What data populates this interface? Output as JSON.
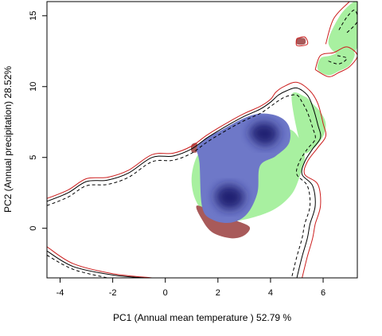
{
  "chart_data": {
    "type": "scatter",
    "title": "",
    "xlabel": "PC1 (Annual mean temperature ) 52.79 %",
    "ylabel": "PC2 (Annual precipitation) 28.52%",
    "xlim": [
      -4.5,
      7.3
    ],
    "ylim": [
      -3.5,
      16
    ],
    "x_ticks": [
      -4,
      -2,
      0,
      2,
      4,
      6
    ],
    "y_ticks": [
      0,
      5,
      10,
      15
    ],
    "grid": false,
    "legend": "none",
    "colors": {
      "green": "#a8f0a0",
      "brown": "#a85a5a",
      "navy": "#1a1f6e",
      "blue_edge": "#6e78c8",
      "red_line": "#cc1e1e",
      "black_line": "#000000"
    },
    "series": [
      {
        "kind": "density-region",
        "color": "#a8f0a0",
        "points": [
          [
            1.1,
            4.6
          ],
          [
            1.4,
            5.6
          ],
          [
            2.0,
            6.6
          ],
          [
            2.8,
            7.2
          ],
          [
            3.8,
            7.3
          ],
          [
            4.5,
            7.1
          ],
          [
            4.9,
            6.8
          ],
          [
            5.2,
            5.9
          ],
          [
            5.3,
            4.9
          ],
          [
            5.1,
            3.6
          ],
          [
            4.8,
            2.4
          ],
          [
            4.2,
            1.4
          ],
          [
            3.4,
            0.8
          ],
          [
            2.5,
            0.5
          ],
          [
            1.7,
            0.8
          ],
          [
            1.2,
            1.8
          ],
          [
            1.0,
            3.2
          ]
        ]
      },
      {
        "kind": "density-region",
        "color": "#a8f0a0",
        "points": [
          [
            4.8,
            9.3
          ],
          [
            5.3,
            9.3
          ],
          [
            5.6,
            8.8
          ],
          [
            5.9,
            8.2
          ],
          [
            6.1,
            7.4
          ],
          [
            6.0,
            6.5
          ],
          [
            5.6,
            5.6
          ],
          [
            5.2,
            5.6
          ]
        ]
      },
      {
        "kind": "density-region",
        "color": "#a8f0a0",
        "points": [
          [
            6.2,
            13.1
          ],
          [
            6.6,
            14.9
          ],
          [
            7.1,
            15.9
          ],
          [
            7.3,
            15.8
          ],
          [
            7.3,
            12.8
          ],
          [
            6.7,
            12.2
          ]
        ]
      },
      {
        "kind": "density-region",
        "color": "#a8f0a0",
        "points": [
          [
            5.9,
            12.0
          ],
          [
            6.3,
            12.2
          ],
          [
            6.9,
            12.6
          ],
          [
            7.2,
            12.3
          ],
          [
            7.0,
            11.5
          ],
          [
            6.6,
            11.1
          ],
          [
            6.2,
            10.8
          ],
          [
            5.8,
            11.2
          ]
        ]
      },
      {
        "kind": "density-region",
        "color": "#a85a5a",
        "points": [
          [
            1.2,
            1.6
          ],
          [
            1.4,
            0.6
          ],
          [
            1.8,
            -0.3
          ],
          [
            2.5,
            -0.7
          ],
          [
            3.0,
            -0.5
          ],
          [
            3.2,
            0.1
          ],
          [
            2.6,
            0.6
          ],
          [
            2.0,
            1.0
          ]
        ]
      },
      {
        "kind": "density-region",
        "color": "#a85a5a",
        "points": [
          [
            1.0,
            5.9
          ],
          [
            1.2,
            6.0
          ],
          [
            1.2,
            5.4
          ],
          [
            1.0,
            5.4
          ]
        ]
      },
      {
        "kind": "density-region",
        "color": "#a85a5a",
        "points": [
          [
            5.0,
            13.4
          ],
          [
            5.3,
            13.4
          ],
          [
            5.3,
            13.0
          ],
          [
            5.0,
            13.0
          ]
        ]
      },
      {
        "kind": "density-region",
        "color": "#6e78c8",
        "points": [
          [
            1.3,
            4.6
          ],
          [
            1.2,
            5.7
          ],
          [
            1.6,
            6.4
          ],
          [
            2.2,
            7.0
          ],
          [
            2.9,
            7.7
          ],
          [
            3.6,
            8.1
          ],
          [
            4.3,
            7.9
          ],
          [
            4.7,
            7.2
          ],
          [
            4.7,
            6.0
          ],
          [
            4.2,
            5.1
          ],
          [
            3.6,
            4.4
          ],
          [
            3.5,
            2.5
          ],
          [
            3.1,
            1.0
          ],
          [
            2.5,
            0.4
          ],
          [
            1.8,
            0.6
          ],
          [
            1.4,
            1.5
          ]
        ]
      },
      {
        "kind": "density-core",
        "color": "#1a1f6e",
        "points": [
          [
            3.2,
            6.7
          ],
          [
            3.5,
            7.4
          ],
          [
            4.0,
            7.4
          ],
          [
            4.3,
            6.8
          ],
          [
            4.1,
            6.0
          ],
          [
            3.6,
            5.9
          ]
        ]
      },
      {
        "kind": "density-core",
        "color": "#1a1f6e",
        "points": [
          [
            1.9,
            2.2
          ],
          [
            2.1,
            2.9
          ],
          [
            2.6,
            3.0
          ],
          [
            3.0,
            2.4
          ],
          [
            2.8,
            1.5
          ],
          [
            2.2,
            1.4
          ]
        ]
      },
      {
        "kind": "contour",
        "color": "#cc1e1e",
        "style": "solid",
        "points": [
          [
            -4.5,
            2.1
          ],
          [
            -3.7,
            2.7
          ],
          [
            -3.0,
            3.5
          ],
          [
            -2.2,
            3.6
          ],
          [
            -1.4,
            4.1
          ],
          [
            -0.5,
            5.2
          ],
          [
            0.3,
            5.3
          ],
          [
            1.0,
            5.8
          ],
          [
            1.6,
            6.6
          ],
          [
            2.4,
            7.5
          ],
          [
            3.0,
            8.1
          ],
          [
            3.6,
            8.6
          ],
          [
            4.0,
            9.1
          ],
          [
            4.2,
            9.6
          ],
          [
            4.5,
            10.0
          ],
          [
            5.0,
            10.3
          ],
          [
            5.5,
            9.7
          ],
          [
            5.8,
            8.8
          ],
          [
            6.0,
            7.4
          ],
          [
            6.1,
            6.5
          ],
          [
            5.8,
            5.7
          ],
          [
            5.4,
            4.7
          ],
          [
            5.3,
            3.8
          ],
          [
            5.8,
            3.1
          ],
          [
            5.9,
            1.6
          ],
          [
            5.7,
            0.3
          ],
          [
            5.6,
            -0.7
          ],
          [
            5.4,
            -2.0
          ],
          [
            5.2,
            -3.5
          ]
        ]
      },
      {
        "kind": "contour",
        "color": "#cc1e1e",
        "style": "solid",
        "points": [
          [
            -4.5,
            -1.3
          ],
          [
            -3.5,
            -2.5
          ],
          [
            -2.0,
            -3.2
          ],
          [
            -0.5,
            -3.5
          ]
        ]
      },
      {
        "kind": "contour",
        "color": "#000000",
        "style": "solid",
        "points": [
          [
            -4.5,
            1.9
          ],
          [
            -3.7,
            2.5
          ],
          [
            -3.0,
            3.3
          ],
          [
            -2.2,
            3.4
          ],
          [
            -1.4,
            3.9
          ],
          [
            -0.5,
            5.0
          ],
          [
            0.3,
            5.1
          ],
          [
            1.0,
            5.6
          ],
          [
            1.6,
            6.4
          ],
          [
            2.4,
            7.3
          ],
          [
            3.0,
            7.9
          ],
          [
            3.6,
            8.4
          ],
          [
            4.0,
            8.9
          ],
          [
            4.3,
            9.4
          ],
          [
            4.6,
            9.7
          ],
          [
            5.0,
            9.9
          ],
          [
            5.4,
            9.4
          ],
          [
            5.6,
            8.6
          ],
          [
            5.8,
            7.3
          ],
          [
            5.9,
            6.4
          ],
          [
            5.6,
            5.6
          ],
          [
            5.3,
            4.7
          ],
          [
            5.2,
            3.8
          ],
          [
            5.6,
            3.0
          ],
          [
            5.7,
            1.6
          ],
          [
            5.5,
            0.3
          ],
          [
            5.4,
            -0.7
          ],
          [
            5.2,
            -2.0
          ],
          [
            5.0,
            -3.5
          ]
        ]
      },
      {
        "kind": "contour",
        "color": "#000000",
        "style": "solid",
        "points": [
          [
            -4.5,
            -1.6
          ],
          [
            -3.5,
            -2.7
          ],
          [
            -2.0,
            -3.3
          ],
          [
            -0.8,
            -3.5
          ]
        ]
      },
      {
        "kind": "contour",
        "color": "#000000",
        "style": "dashed",
        "points": [
          [
            -4.5,
            1.6
          ],
          [
            -3.7,
            2.2
          ],
          [
            -3.0,
            3.0
          ],
          [
            -2.2,
            3.1
          ],
          [
            -1.4,
            3.6
          ],
          [
            -0.5,
            4.7
          ],
          [
            0.3,
            4.8
          ],
          [
            1.0,
            5.3
          ],
          [
            1.6,
            6.1
          ],
          [
            2.4,
            7.0
          ],
          [
            3.0,
            7.6
          ],
          [
            3.6,
            8.1
          ],
          [
            4.0,
            8.6
          ],
          [
            4.3,
            9.0
          ],
          [
            4.6,
            9.3
          ],
          [
            5.0,
            9.4
          ],
          [
            5.2,
            8.9
          ],
          [
            5.4,
            8.2
          ],
          [
            5.6,
            7.1
          ],
          [
            5.7,
            6.3
          ],
          [
            5.4,
            5.6
          ],
          [
            5.1,
            4.7
          ],
          [
            5.0,
            3.8
          ],
          [
            5.4,
            3.0
          ],
          [
            5.5,
            1.6
          ],
          [
            5.3,
            0.3
          ],
          [
            5.2,
            -0.7
          ],
          [
            5.0,
            -2.0
          ],
          [
            4.8,
            -3.5
          ]
        ]
      },
      {
        "kind": "contour",
        "color": "#000000",
        "style": "dashed",
        "points": [
          [
            -4.5,
            -1.9
          ],
          [
            -3.5,
            -2.9
          ],
          [
            -2.2,
            -3.5
          ]
        ]
      },
      {
        "kind": "contour",
        "color": "#cc1e1e",
        "style": "solid",
        "points": [
          [
            5.0,
            13.4
          ],
          [
            5.3,
            13.5
          ],
          [
            5.4,
            13.0
          ],
          [
            5.0,
            12.9
          ],
          [
            5.0,
            13.4
          ]
        ]
      },
      {
        "kind": "contour",
        "color": "#cc1e1e",
        "style": "solid",
        "points": [
          [
            5.7,
            11.2
          ],
          [
            6.2,
            10.7
          ],
          [
            6.6,
            11.0
          ],
          [
            7.0,
            11.4
          ],
          [
            7.3,
            12.2
          ],
          [
            6.9,
            12.8
          ],
          [
            6.4,
            12.4
          ],
          [
            5.9,
            12.2
          ],
          [
            5.7,
            11.2
          ]
        ]
      },
      {
        "kind": "contour",
        "color": "#cc1e1e",
        "style": "solid",
        "points": [
          [
            6.1,
            13.0
          ],
          [
            6.4,
            14.8
          ],
          [
            7.0,
            16.0
          ]
        ]
      },
      {
        "kind": "contour",
        "color": "#000000",
        "style": "dashed",
        "points": [
          [
            6.6,
            14.0
          ],
          [
            6.9,
            14.9
          ],
          [
            7.2,
            15.4
          ],
          [
            7.3,
            14.6
          ],
          [
            6.9,
            13.8
          ]
        ]
      },
      {
        "kind": "contour",
        "color": "#000000",
        "style": "dashed",
        "points": [
          [
            6.2,
            11.8
          ],
          [
            6.6,
            11.6
          ],
          [
            6.9,
            12.0
          ],
          [
            6.5,
            12.2
          ]
        ]
      }
    ]
  }
}
